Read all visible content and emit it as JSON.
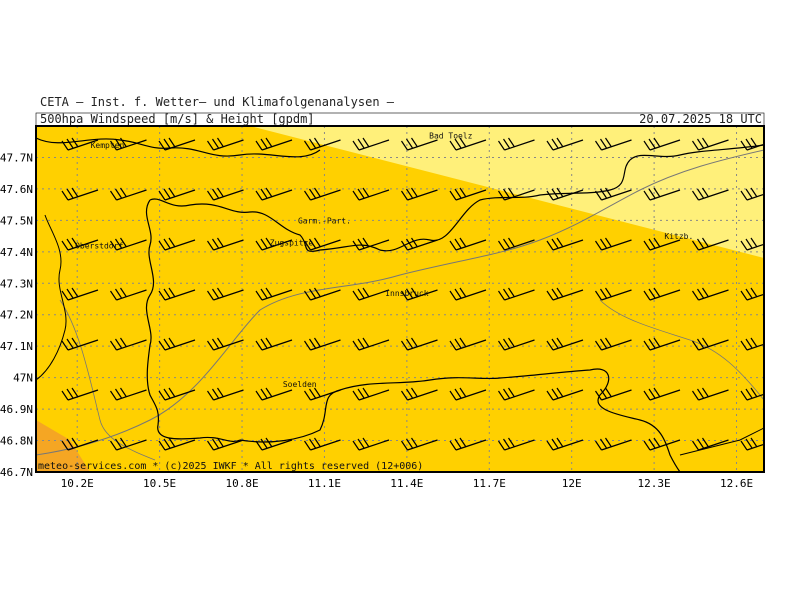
{
  "header": {
    "institute": "CETA — Inst. f. Wetter— und Klimafolgenanalysen —",
    "product": "500hpa_Windspeed_[m/s]_&_Height_[gpdm]",
    "valid_time": "20.07.2025 18 UTC"
  },
  "map": {
    "lon_range": [
      10.05,
      12.7
    ],
    "lat_range": [
      46.7,
      47.8
    ],
    "lon_ticks": [
      "10.2E",
      "10.5E",
      "10.8E",
      "11.1E",
      "11.4E",
      "11.7E",
      "12E",
      "12.3E",
      "12.6E"
    ],
    "lat_ticks": [
      "47.7N",
      "47.6N",
      "47.5N",
      "47.4N",
      "47.3N",
      "47.2N",
      "47.1N",
      "47N",
      "46.9N",
      "46.8N",
      "46.7N"
    ],
    "colors": {
      "band_light": "#fff07a",
      "band_mid": "#ffd000",
      "band_dark": "#ffe000",
      "corner_orange": "#f5a623",
      "grid": "#888888",
      "border": "#000000",
      "river": "#777777"
    },
    "cities": [
      {
        "name": "Kempten",
        "lon": 10.31,
        "lat": 47.73
      },
      {
        "name": "Bad Toelz",
        "lon": 11.56,
        "lat": 47.76
      },
      {
        "name": "Garm.-Part.",
        "lon": 11.1,
        "lat": 47.49
      },
      {
        "name": "Zugspitze",
        "lon": 10.98,
        "lat": 47.42,
        "highlight": true
      },
      {
        "name": "Oberstdorf",
        "lon": 10.28,
        "lat": 47.41
      },
      {
        "name": "Innsbruck",
        "lon": 11.4,
        "lat": 47.26
      },
      {
        "name": "Kitzb.",
        "lon": 12.39,
        "lat": 47.44
      },
      {
        "name": "Soelden",
        "lon": 11.01,
        "lat": 46.97
      }
    ],
    "credit": "meteo-services.com * (c)2025 IWKF * All rights reserved (12+006)"
  }
}
